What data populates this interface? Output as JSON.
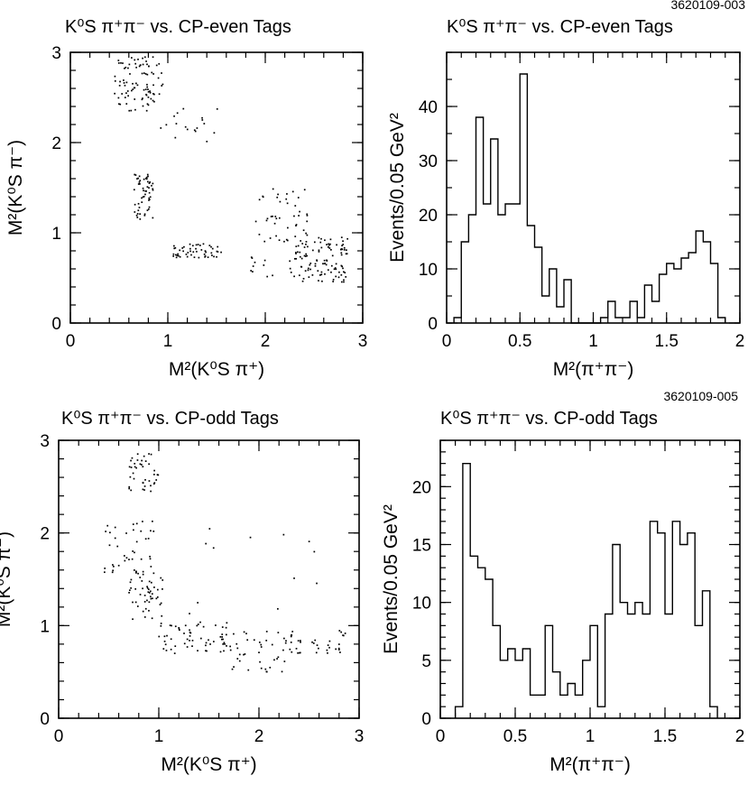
{
  "chart_data": [
    {
      "id": "tl",
      "type": "scatter",
      "title": "K⁰S π⁺π⁻ vs. CP-even Tags",
      "xlabel": "M²(K⁰S π⁺)",
      "ylabel": "M²(K⁰S π⁻)",
      "xlim": [
        0,
        3
      ],
      "ylim": [
        0,
        3
      ],
      "xticks": [
        0,
        1,
        2,
        3
      ],
      "yticks": [
        0,
        1,
        2,
        3
      ],
      "point_regions": [
        {
          "x": [
            0.45,
            0.95
          ],
          "y": [
            2.35,
            2.95
          ],
          "n": 90
        },
        {
          "x": [
            0.9,
            1.55
          ],
          "y": [
            2.0,
            2.4
          ],
          "n": 18
        },
        {
          "x": [
            0.65,
            0.85
          ],
          "y": [
            1.15,
            1.65
          ],
          "n": 55
        },
        {
          "x": [
            1.05,
            1.55
          ],
          "y": [
            0.72,
            0.88
          ],
          "n": 50
        },
        {
          "x": [
            1.9,
            2.45
          ],
          "y": [
            0.9,
            1.5
          ],
          "n": 45
        },
        {
          "x": [
            2.25,
            2.85
          ],
          "y": [
            0.45,
            0.95
          ],
          "n": 110
        },
        {
          "x": [
            1.85,
            2.1
          ],
          "y": [
            0.5,
            0.75
          ],
          "n": 10
        }
      ]
    },
    {
      "id": "tr",
      "type": "bar",
      "plot_id": "3620109-003",
      "title": "K⁰S π⁺π⁻ vs. CP-even Tags",
      "xlabel": "M²(π⁺π⁻)",
      "ylabel": "Events/0.05 GeV²",
      "xlim": [
        0,
        2
      ],
      "ylim": [
        0,
        50
      ],
      "xticks": [
        0,
        0.5,
        1,
        1.5,
        2
      ],
      "xtick_labels": [
        "0",
        "0.5",
        "1",
        "1.5",
        "2"
      ],
      "yticks": [
        0,
        10,
        20,
        30,
        40
      ],
      "yminor": 5,
      "bin_width": 0.05,
      "x_start": 0.05,
      "values": [
        1,
        15,
        20,
        38,
        22,
        34,
        20,
        22,
        22,
        46,
        18,
        14,
        5,
        10,
        3,
        8,
        0,
        0,
        0,
        0,
        1,
        4,
        1,
        1,
        4,
        1,
        7,
        4,
        9,
        11,
        10,
        12,
        13,
        17,
        15,
        11,
        1
      ]
    },
    {
      "id": "bl",
      "type": "scatter",
      "title": "K⁰S π⁺π⁻ vs. CP-odd Tags",
      "xlabel": "M²(K⁰S π⁺)",
      "ylabel": "M²(K⁰S π⁻)",
      "xlim": [
        0,
        3
      ],
      "ylim": [
        0,
        3
      ],
      "xticks": [
        0,
        1,
        2,
        3
      ],
      "yticks": [
        0,
        1,
        2,
        3
      ],
      "point_regions": [
        {
          "x": [
            0.7,
            1.0
          ],
          "y": [
            2.45,
            2.9
          ],
          "n": 40
        },
        {
          "x": [
            0.45,
            0.95
          ],
          "y": [
            1.55,
            2.15
          ],
          "n": 40
        },
        {
          "x": [
            0.7,
            1.05
          ],
          "y": [
            1.05,
            1.6
          ],
          "n": 50
        },
        {
          "x": [
            1.0,
            1.7
          ],
          "y": [
            0.7,
            1.05
          ],
          "n": 60
        },
        {
          "x": [
            1.7,
            2.3
          ],
          "y": [
            0.5,
            0.95
          ],
          "n": 40
        },
        {
          "x": [
            2.3,
            2.9
          ],
          "y": [
            0.7,
            0.95
          ],
          "n": 35
        },
        {
          "x": [
            1.1,
            2.6
          ],
          "y": [
            1.1,
            2.05
          ],
          "n": 12
        }
      ]
    },
    {
      "id": "br",
      "type": "bar",
      "plot_id": "3620109-005",
      "title": "K⁰S π⁺π⁻ vs. CP-odd Tags",
      "xlabel": "M²(π⁺π⁻)",
      "ylabel": "Events/0.05 GeV²",
      "xlim": [
        0,
        2
      ],
      "ylim": [
        0,
        24
      ],
      "xticks": [
        0,
        0.5,
        1,
        1.5,
        2
      ],
      "xtick_labels": [
        "0",
        "0.5",
        "1",
        "1.5",
        "2"
      ],
      "yticks": [
        0,
        5,
        10,
        15,
        20
      ],
      "yminor": 1,
      "bin_width": 0.05,
      "x_start": 0.1,
      "values": [
        1,
        22,
        14,
        13,
        12,
        8,
        5,
        6,
        5,
        6,
        2,
        2,
        8,
        4,
        2,
        3,
        2,
        5,
        8,
        1,
        9,
        15,
        10,
        9,
        10,
        9,
        17,
        16,
        9,
        17,
        15,
        16,
        8,
        11,
        1
      ]
    }
  ]
}
